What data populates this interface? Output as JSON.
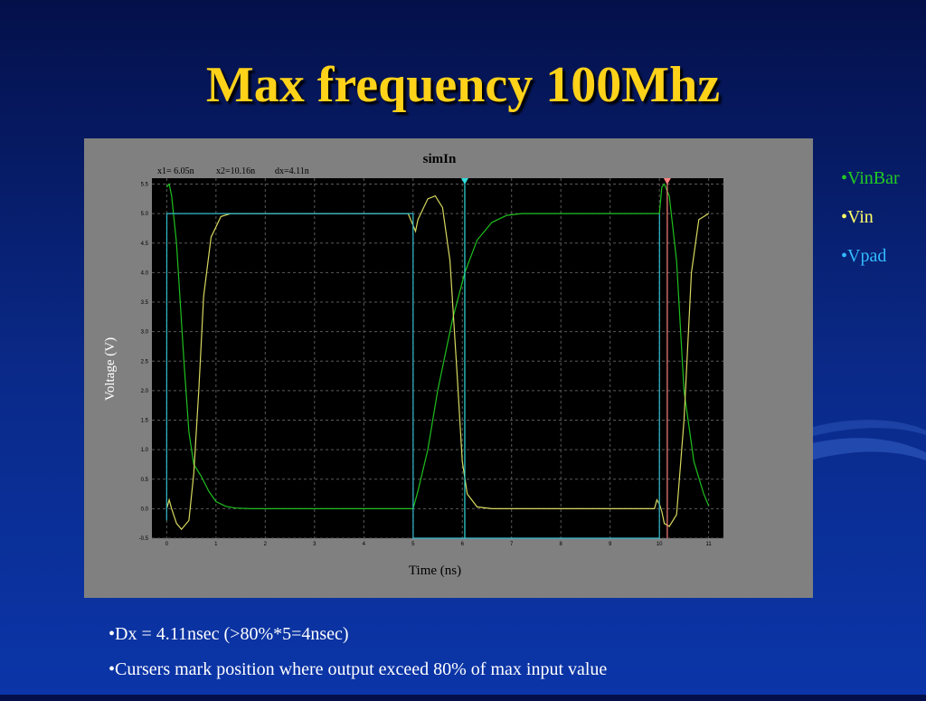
{
  "slide": {
    "title": "Max frequency 100Mhz",
    "legend": [
      {
        "label": "•VinBar",
        "color": "#22cc22"
      },
      {
        "label": "•Vin",
        "color": "#ffff66"
      },
      {
        "label": "•Vpad",
        "color": "#33bbff"
      }
    ],
    "notes": [
      "•Dx = 4.11nsec (>80%*5=4nsec)",
      "•Cursers mark position where output exceed 80% of max input value"
    ]
  },
  "chart_data": {
    "type": "line",
    "title": "simIn",
    "xlabel": "Time (ns)",
    "ylabel": "Voltage (V)",
    "xlim": [
      -0.3,
      11.3
    ],
    "ylim": [
      -0.5,
      5.6
    ],
    "xticks": [
      "0",
      "1",
      "2",
      "3",
      "4",
      "5",
      "6",
      "7",
      "8",
      "9",
      "10",
      "11"
    ],
    "yticks": [
      "5.5",
      "5.0",
      "4.5",
      "4.0",
      "3.5",
      "3.0",
      "2.5",
      "2.0",
      "1.5",
      "1.0",
      "0.5",
      "0.0",
      "-0.5"
    ],
    "grid": true,
    "cursor_readout": {
      "x1": "x1= 6.05n",
      "x2": "x2=10.16n",
      "dx": "dx=4.11n"
    },
    "cursors": [
      6.05,
      10.16
    ],
    "series": [
      {
        "color": "#1fbf1f",
        "x": [
          0,
          0.05,
          0.1,
          0.2,
          0.35,
          0.45,
          0.55,
          0.7,
          0.85,
          1.0,
          1.2,
          1.4,
          1.7,
          2,
          3,
          4,
          4.9,
          5.0,
          5.1,
          5.3,
          5.5,
          5.8,
          6.05,
          6.3,
          6.6,
          6.9,
          7.2,
          7.5,
          8,
          9,
          9.8,
          10.0,
          10.05,
          10.1,
          10.2,
          10.35,
          10.5,
          10.7,
          10.9,
          11.0
        ],
        "y": [
          5.45,
          5.5,
          5.3,
          4.5,
          2.5,
          1.3,
          0.75,
          0.55,
          0.3,
          0.12,
          0.04,
          0.01,
          0,
          0,
          0,
          0,
          0,
          0,
          0.3,
          1.0,
          2.0,
          3.2,
          4.0,
          4.55,
          4.85,
          4.97,
          5.0,
          5.0,
          5.0,
          5.0,
          5.0,
          5.0,
          5.45,
          5.5,
          5.3,
          4.2,
          2.0,
          0.8,
          0.25,
          0.05
        ]
      },
      {
        "color": "#d8d860",
        "x": [
          0,
          0.05,
          0.1,
          0.2,
          0.3,
          0.45,
          0.55,
          0.65,
          0.75,
          0.9,
          1.1,
          1.3,
          1.6,
          2.0,
          4.9,
          5.0,
          5.05,
          5.1,
          5.3,
          5.45,
          5.6,
          5.75,
          5.9,
          6.0,
          6.1,
          6.3,
          6.6,
          7,
          8,
          9,
          9.9,
          9.95,
          10.0,
          10.05,
          10.1,
          10.2,
          10.35,
          10.5,
          10.65,
          10.8,
          11.0
        ],
        "y": [
          0.0,
          0.15,
          0.0,
          -0.25,
          -0.35,
          -0.2,
          0.6,
          2.0,
          3.6,
          4.6,
          4.95,
          5.0,
          5.0,
          5.0,
          5.0,
          4.8,
          4.7,
          4.9,
          5.25,
          5.3,
          5.1,
          4.2,
          2.2,
          0.8,
          0.25,
          0.03,
          0.0,
          0.0,
          0.0,
          0.0,
          0.0,
          0.15,
          0.08,
          -0.05,
          -0.25,
          -0.3,
          -0.1,
          1.5,
          4.0,
          4.9,
          5.0
        ]
      },
      {
        "color": "#33bbcc",
        "x": [
          0,
          0.002,
          5.0,
          5.002,
          10.0,
          10.002
        ],
        "y": [
          -0.2,
          5.0,
          5.0,
          -0.5,
          -0.5,
          5.0
        ]
      }
    ]
  }
}
